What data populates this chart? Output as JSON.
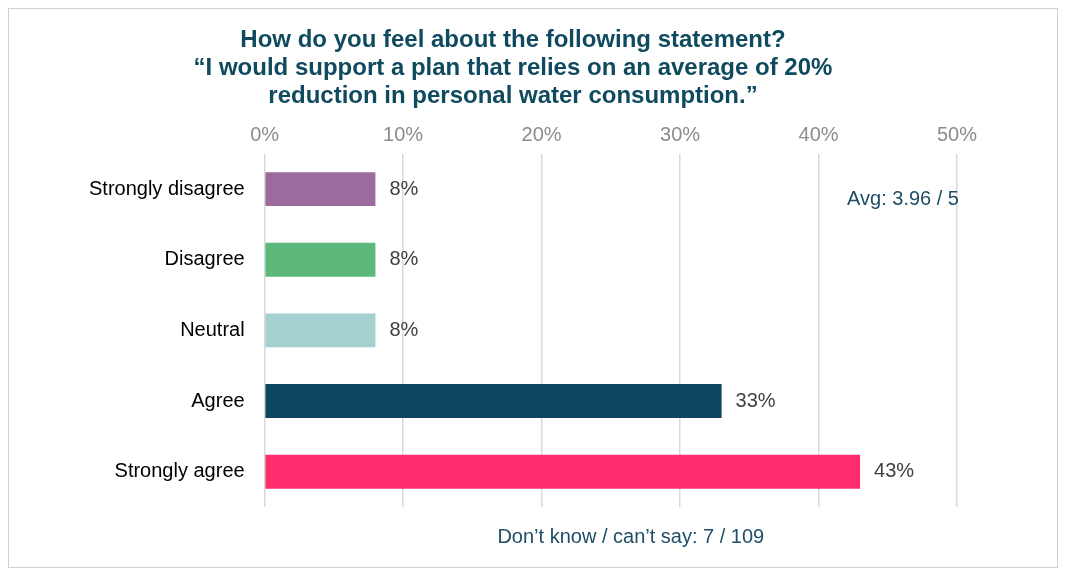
{
  "chart_data": {
    "type": "bar",
    "orientation": "horizontal",
    "title": "How do you feel about the following statement?\n“I would support a plan that relies on an average of 20%\nreduction in personal water consumption.”",
    "categories": [
      "Strongly disagree",
      "Disagree",
      "Neutral",
      "Agree",
      "Strongly agree"
    ],
    "values": [
      8,
      8,
      8,
      33,
      43
    ],
    "colors": [
      "#9b6b9e",
      "#5db87c",
      "#a4d0cf",
      "#0d4660",
      "#ff2d6e"
    ],
    "xlim": [
      0,
      50
    ],
    "xticks": [
      {
        "value": 0,
        "label": "0%"
      },
      {
        "value": 10,
        "label": "10%"
      },
      {
        "value": 20,
        "label": "20%"
      },
      {
        "value": 30,
        "label": "30%"
      },
      {
        "value": 40,
        "label": "40%"
      },
      {
        "value": 50,
        "label": "50%"
      }
    ],
    "grid": "x",
    "legend": false,
    "value_labels": [
      "8%",
      "8%",
      "8%",
      "33%",
      "43%"
    ],
    "annotations": [
      "Avg: 3.96 / 5",
      "Don’t know / can’t say: 7 / 109"
    ]
  }
}
